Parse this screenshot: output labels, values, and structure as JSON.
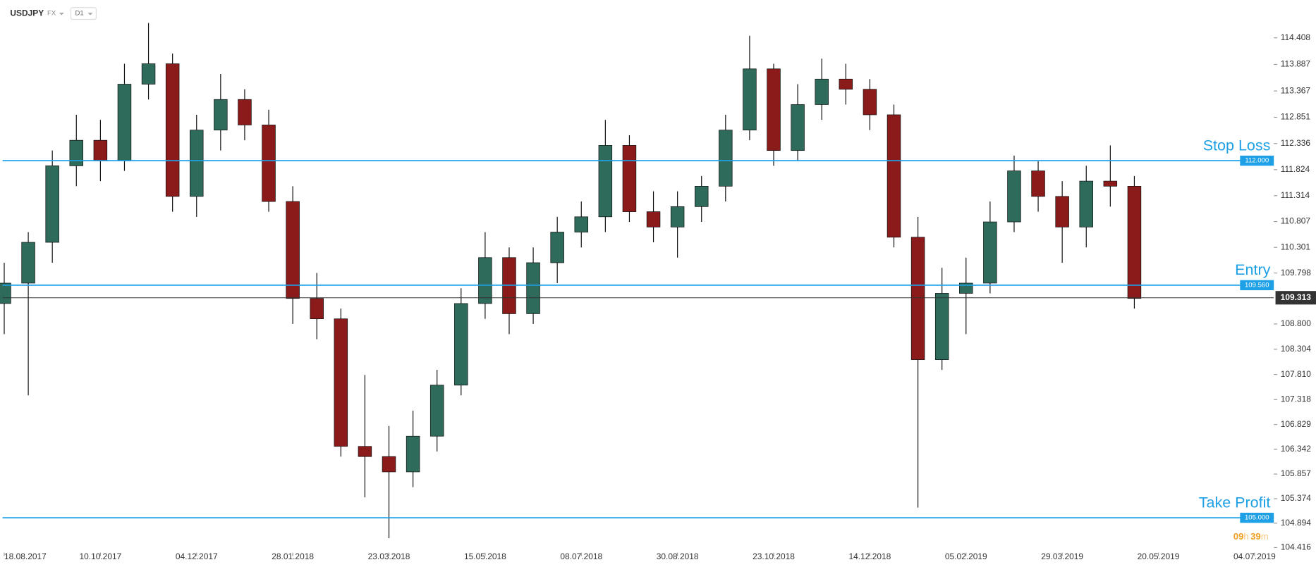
{
  "toolbar": {
    "symbol": "USDJPY",
    "market": "FX",
    "interval": "D1"
  },
  "countdown": {
    "hours": "09",
    "h": "h",
    "minutes": "39",
    "m": "m"
  },
  "chart_data": {
    "type": "candlestick",
    "x": [
      0,
      1,
      2,
      3,
      4,
      5,
      6,
      7,
      8,
      9,
      10,
      11,
      12,
      13,
      14,
      15,
      16,
      17,
      18,
      19,
      20,
      21,
      22,
      23,
      24,
      25,
      26,
      27,
      28,
      29,
      30,
      31,
      32,
      33,
      34,
      35,
      36,
      37,
      38,
      39,
      40,
      41,
      42,
      43,
      44,
      45,
      46,
      47
    ],
    "open": [
      109.2,
      109.6,
      110.4,
      111.9,
      112.4,
      112.0,
      113.5,
      113.9,
      111.3,
      112.6,
      113.2,
      112.7,
      111.2,
      109.3,
      108.9,
      106.4,
      106.2,
      105.9,
      106.6,
      107.6,
      109.2,
      110.1,
      109.0,
      110.0,
      110.6,
      110.9,
      112.3,
      111.0,
      110.7,
      111.1,
      111.5,
      112.6,
      113.8,
      112.2,
      113.1,
      113.6,
      113.4,
      112.9,
      110.5,
      108.1,
      109.4,
      109.6,
      110.8,
      111.8,
      111.3,
      110.7,
      111.6,
      111.5
    ],
    "high": [
      110.0,
      110.6,
      112.2,
      112.9,
      112.8,
      113.9,
      114.7,
      114.1,
      112.9,
      113.7,
      113.4,
      113.0,
      111.5,
      109.8,
      109.1,
      107.8,
      106.8,
      107.1,
      107.9,
      109.5,
      110.6,
      110.3,
      110.3,
      110.9,
      111.2,
      112.8,
      112.5,
      111.4,
      111.4,
      111.7,
      112.9,
      114.45,
      113.9,
      113.5,
      114.0,
      113.9,
      113.6,
      113.1,
      110.9,
      109.9,
      110.1,
      111.2,
      112.1,
      112.0,
      111.6,
      111.9,
      112.3,
      111.7
    ],
    "low": [
      108.6,
      107.4,
      110.0,
      111.5,
      111.6,
      111.8,
      113.2,
      111.0,
      110.9,
      112.2,
      112.4,
      111.0,
      108.8,
      108.5,
      106.2,
      105.4,
      104.6,
      105.6,
      106.3,
      107.4,
      108.9,
      108.6,
      108.8,
      109.6,
      110.3,
      110.6,
      110.8,
      110.4,
      110.1,
      110.8,
      111.2,
      112.4,
      111.9,
      112.0,
      112.8,
      113.1,
      112.6,
      110.3,
      105.2,
      107.9,
      108.6,
      109.4,
      110.6,
      111.0,
      110.0,
      110.3,
      111.1,
      109.1
    ],
    "close": [
      109.6,
      110.4,
      111.9,
      112.4,
      112.0,
      113.5,
      113.9,
      111.3,
      112.6,
      113.2,
      112.7,
      111.2,
      109.3,
      108.9,
      106.4,
      106.2,
      105.9,
      106.6,
      107.6,
      109.2,
      110.1,
      109.0,
      110.0,
      110.6,
      110.9,
      112.3,
      111.0,
      110.7,
      111.1,
      111.5,
      112.6,
      113.8,
      112.2,
      113.1,
      113.6,
      113.4,
      112.9,
      110.5,
      108.1,
      109.4,
      109.6,
      110.8,
      111.8,
      111.3,
      110.7,
      111.6,
      111.5,
      109.3
    ],
    "up_color": "#2e6b5a",
    "down_color": "#8b1a1a",
    "xlim": [
      0,
      52.8
    ],
    "xticks": [
      {
        "value": 0,
        "label": "18.08.2017"
      },
      {
        "value": 4,
        "label": "10.10.2017"
      },
      {
        "value": 8,
        "label": "04.12.2017"
      },
      {
        "value": 12,
        "label": "28.01.2018"
      },
      {
        "value": 16,
        "label": "23.03.2018"
      },
      {
        "value": 20,
        "label": "15.05.2018"
      },
      {
        "value": 24,
        "label": "08.07.2018"
      },
      {
        "value": 28,
        "label": "30.08.2018"
      },
      {
        "value": 32,
        "label": "23.10.2018"
      },
      {
        "value": 36,
        "label": "14.12.2018"
      },
      {
        "value": 40,
        "label": "05.02.2019"
      },
      {
        "value": 44,
        "label": "29.03.2019"
      },
      {
        "value": 48,
        "label": "20.05.2019"
      },
      {
        "value": 52,
        "label": "04.07.2019"
      }
    ],
    "ylim": [
      104.25,
      115.15
    ],
    "yticks": [
      114.408,
      113.887,
      113.367,
      112.851,
      112.336,
      111.824,
      111.314,
      110.807,
      110.301,
      109.798,
      {
        "value": 108.8,
        "label": "108.800"
      },
      108.304,
      {
        "value": 107.81,
        "label": "107.810"
      },
      107.318,
      106.829,
      106.342,
      105.857,
      105.374,
      104.894,
      104.416
    ],
    "levels": [
      {
        "name": "Stop Loss",
        "value": 112,
        "value_label": "112.000"
      },
      {
        "name": "Entry",
        "value": 109.56,
        "value_label": "109.560"
      },
      {
        "name": "Take Profit",
        "value": 105,
        "value_label": "105.000"
      }
    ],
    "level_color": "#1ea0e6",
    "current_price": 109.313
  }
}
